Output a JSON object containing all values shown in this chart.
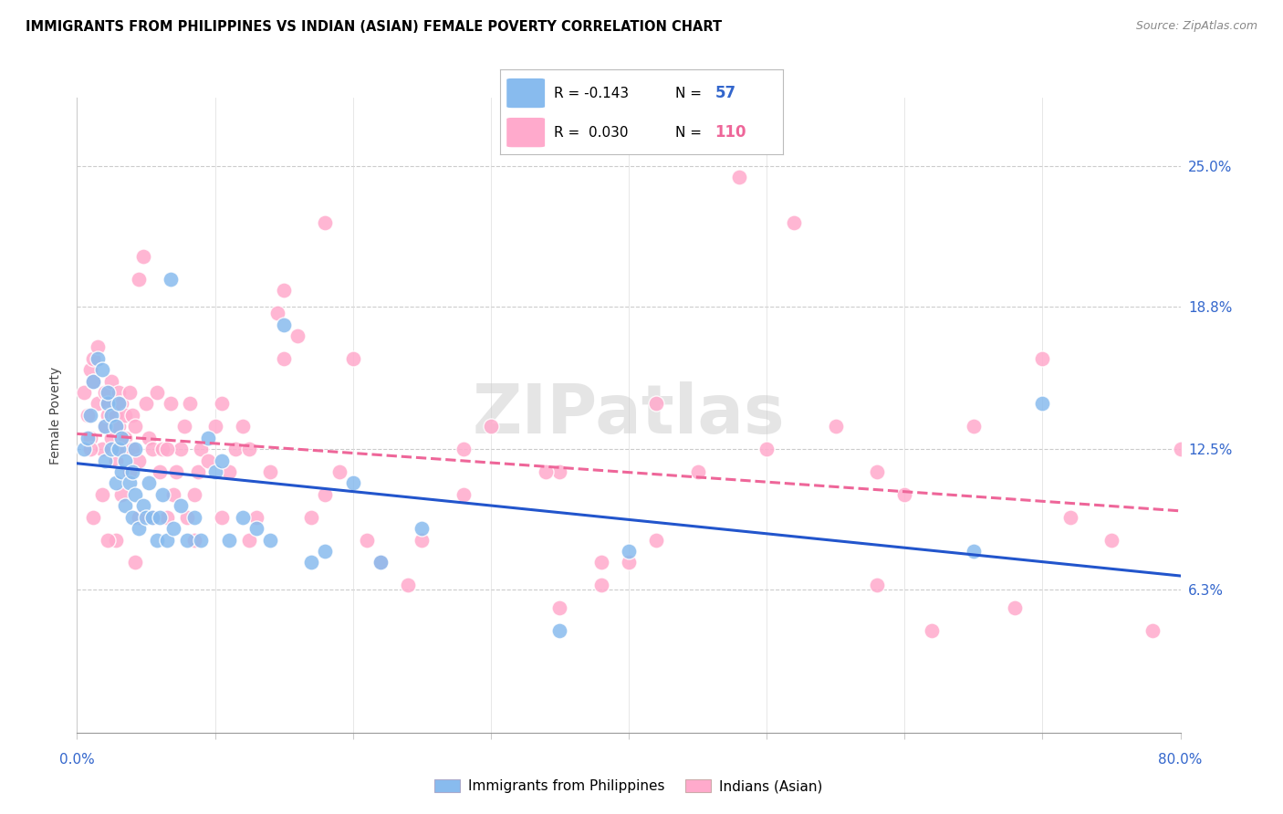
{
  "title": "IMMIGRANTS FROM PHILIPPINES VS INDIAN (ASIAN) FEMALE POVERTY CORRELATION CHART",
  "source": "Source: ZipAtlas.com",
  "ylabel": "Female Poverty",
  "ytick_values": [
    0.063,
    0.125,
    0.188,
    0.25
  ],
  "ytick_labels": [
    "6.3%",
    "12.5%",
    "18.8%",
    "25.0%"
  ],
  "xlim": [
    0.0,
    0.8
  ],
  "ylim": [
    0.0,
    0.28
  ],
  "color_blue": "#88bbee",
  "color_pink": "#ffaacc",
  "line_color_blue": "#2255cc",
  "line_color_pink": "#ee6699",
  "watermark": "ZIPatlas",
  "philippines_x": [
    0.005,
    0.008,
    0.01,
    0.012,
    0.015,
    0.018,
    0.02,
    0.02,
    0.022,
    0.022,
    0.025,
    0.025,
    0.028,
    0.028,
    0.03,
    0.03,
    0.032,
    0.032,
    0.035,
    0.035,
    0.038,
    0.04,
    0.04,
    0.042,
    0.042,
    0.045,
    0.048,
    0.05,
    0.052,
    0.055,
    0.058,
    0.06,
    0.062,
    0.065,
    0.068,
    0.07,
    0.075,
    0.08,
    0.085,
    0.09,
    0.095,
    0.1,
    0.105,
    0.11,
    0.12,
    0.13,
    0.14,
    0.15,
    0.17,
    0.18,
    0.2,
    0.22,
    0.25,
    0.35,
    0.4,
    0.65,
    0.7
  ],
  "philippines_y": [
    0.125,
    0.13,
    0.14,
    0.155,
    0.165,
    0.16,
    0.12,
    0.135,
    0.145,
    0.15,
    0.125,
    0.14,
    0.11,
    0.135,
    0.125,
    0.145,
    0.115,
    0.13,
    0.1,
    0.12,
    0.11,
    0.095,
    0.115,
    0.105,
    0.125,
    0.09,
    0.1,
    0.095,
    0.11,
    0.095,
    0.085,
    0.095,
    0.105,
    0.085,
    0.2,
    0.09,
    0.1,
    0.085,
    0.095,
    0.085,
    0.13,
    0.115,
    0.12,
    0.085,
    0.095,
    0.09,
    0.085,
    0.18,
    0.075,
    0.08,
    0.11,
    0.075,
    0.09,
    0.045,
    0.08,
    0.08,
    0.145
  ],
  "indians_x": [
    0.005,
    0.008,
    0.01,
    0.01,
    0.012,
    0.012,
    0.015,
    0.015,
    0.018,
    0.02,
    0.02,
    0.022,
    0.022,
    0.025,
    0.025,
    0.028,
    0.028,
    0.03,
    0.03,
    0.032,
    0.032,
    0.035,
    0.035,
    0.038,
    0.038,
    0.04,
    0.04,
    0.042,
    0.045,
    0.045,
    0.048,
    0.05,
    0.052,
    0.055,
    0.058,
    0.06,
    0.062,
    0.065,
    0.068,
    0.07,
    0.072,
    0.075,
    0.078,
    0.08,
    0.082,
    0.085,
    0.088,
    0.09,
    0.095,
    0.1,
    0.105,
    0.11,
    0.115,
    0.12,
    0.125,
    0.13,
    0.14,
    0.145,
    0.15,
    0.16,
    0.17,
    0.18,
    0.19,
    0.2,
    0.22,
    0.25,
    0.28,
    0.3,
    0.35,
    0.38,
    0.4,
    0.42,
    0.45,
    0.5,
    0.55,
    0.58,
    0.6,
    0.62,
    0.65,
    0.68,
    0.7,
    0.72,
    0.75,
    0.78,
    0.8,
    0.35,
    0.42,
    0.48,
    0.52,
    0.58,
    0.34,
    0.38,
    0.28,
    0.24,
    0.21,
    0.18,
    0.15,
    0.125,
    0.105,
    0.085,
    0.065,
    0.045,
    0.028,
    0.018,
    0.012,
    0.01,
    0.022,
    0.032,
    0.042,
    0.055
  ],
  "indians_y": [
    0.15,
    0.14,
    0.16,
    0.13,
    0.155,
    0.165,
    0.145,
    0.17,
    0.125,
    0.135,
    0.15,
    0.145,
    0.14,
    0.13,
    0.155,
    0.12,
    0.14,
    0.135,
    0.15,
    0.125,
    0.145,
    0.13,
    0.14,
    0.115,
    0.15,
    0.125,
    0.14,
    0.135,
    0.12,
    0.2,
    0.21,
    0.145,
    0.13,
    0.125,
    0.15,
    0.115,
    0.125,
    0.095,
    0.145,
    0.105,
    0.115,
    0.125,
    0.135,
    0.095,
    0.145,
    0.105,
    0.115,
    0.125,
    0.12,
    0.135,
    0.145,
    0.115,
    0.125,
    0.135,
    0.085,
    0.095,
    0.115,
    0.185,
    0.165,
    0.175,
    0.095,
    0.105,
    0.115,
    0.165,
    0.075,
    0.085,
    0.125,
    0.135,
    0.055,
    0.065,
    0.075,
    0.085,
    0.115,
    0.125,
    0.135,
    0.115,
    0.105,
    0.045,
    0.135,
    0.055,
    0.165,
    0.095,
    0.085,
    0.045,
    0.125,
    0.115,
    0.145,
    0.245,
    0.225,
    0.065,
    0.115,
    0.075,
    0.105,
    0.065,
    0.085,
    0.225,
    0.195,
    0.125,
    0.095,
    0.085,
    0.125,
    0.095,
    0.085,
    0.105,
    0.095,
    0.125,
    0.085,
    0.105,
    0.075,
    0.095
  ]
}
